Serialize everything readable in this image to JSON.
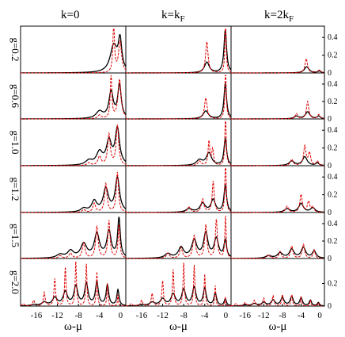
{
  "chart_data": {
    "type": "line",
    "columns": [
      "k=0",
      "k=k_F",
      "k=2k_F"
    ],
    "rows": [
      "g=0.2",
      "g=0.6",
      "g=1.0",
      "g=1.2",
      "g=1.5",
      "g=2.0"
    ],
    "xlabel": "ω-μ",
    "xlim": [
      -19,
      1
    ],
    "xticks": [
      -16,
      -12,
      -8,
      -4,
      0
    ],
    "ylim_upper": [
      0,
      0.5
    ],
    "yticks_upper": [
      0,
      0.2,
      0.4
    ],
    "ylim_bottom": [
      0,
      0.4
    ],
    "yticks_bottom": [
      0,
      0.2
    ],
    "series_styles": [
      {
        "id": "black",
        "color": "#000000",
        "dash": "solid"
      },
      {
        "id": "red",
        "color": "#e00000",
        "dash": "dashed"
      }
    ],
    "panels": [
      {
        "row": 0,
        "col": 0,
        "black": [
          [
            -1.3,
            0.8,
            0.3
          ],
          [
            -0.1,
            0.4,
            0.34
          ]
        ],
        "red": [
          [
            -1.3,
            0.18,
            0.55
          ],
          [
            -0.1,
            0.35,
            0.35
          ]
        ]
      },
      {
        "row": 0,
        "col": 1,
        "black": [
          [
            -3.6,
            0.55,
            0.12
          ],
          [
            -0.1,
            0.3,
            0.48
          ]
        ],
        "red": [
          [
            -3.6,
            0.28,
            0.35
          ],
          [
            -0.05,
            0.14,
            0.62
          ]
        ]
      },
      {
        "row": 0,
        "col": 2,
        "black": [
          [
            -2.8,
            0.6,
            0.07
          ],
          [
            -0.1,
            0.4,
            0.02
          ]
        ],
        "red": [
          [
            -2.9,
            0.32,
            0.16
          ],
          [
            -0.1,
            0.4,
            0.03
          ]
        ]
      },
      {
        "row": 1,
        "col": 0,
        "black": [
          [
            -4.0,
            0.8,
            0.08
          ],
          [
            -1.8,
            0.5,
            0.3
          ],
          [
            -0.2,
            0.4,
            0.38
          ]
        ],
        "red": [
          [
            -4.0,
            0.4,
            0.04
          ],
          [
            -1.8,
            0.18,
            0.5
          ],
          [
            -0.2,
            0.35,
            0.45
          ]
        ]
      },
      {
        "row": 1,
        "col": 1,
        "black": [
          [
            -3.8,
            0.6,
            0.09
          ],
          [
            -0.1,
            0.3,
            0.4
          ]
        ],
        "red": [
          [
            -3.8,
            0.3,
            0.24
          ],
          [
            -0.05,
            0.15,
            0.62
          ]
        ]
      },
      {
        "row": 1,
        "col": 2,
        "black": [
          [
            -5.0,
            0.6,
            0.03
          ],
          [
            -2.6,
            0.6,
            0.08
          ],
          [
            -0.2,
            0.4,
            0.03
          ]
        ],
        "red": [
          [
            -5.0,
            0.3,
            0.06
          ],
          [
            -2.6,
            0.3,
            0.2
          ],
          [
            -0.2,
            0.3,
            0.05
          ]
        ]
      },
      {
        "row": 2,
        "col": 0,
        "black": [
          [
            -6.0,
            0.8,
            0.05
          ],
          [
            -4.0,
            0.7,
            0.14
          ],
          [
            -2.2,
            0.6,
            0.26
          ],
          [
            -0.6,
            0.5,
            0.4
          ]
        ],
        "red": [
          [
            -6.0,
            0.4,
            0.03
          ],
          [
            -4.0,
            0.35,
            0.1
          ],
          [
            -2.2,
            0.3,
            0.35
          ],
          [
            -0.6,
            0.28,
            0.45
          ]
        ]
      },
      {
        "row": 2,
        "col": 1,
        "black": [
          [
            -5.0,
            0.7,
            0.06
          ],
          [
            -3.2,
            0.6,
            0.14
          ],
          [
            -0.1,
            0.3,
            0.3
          ]
        ],
        "red": [
          [
            -5.0,
            0.35,
            0.05
          ],
          [
            -3.2,
            0.2,
            0.27
          ],
          [
            -2.5,
            0.2,
            0.18
          ],
          [
            -0.05,
            0.14,
            0.62
          ]
        ]
      },
      {
        "row": 2,
        "col": 2,
        "black": [
          [
            -6.0,
            0.7,
            0.05
          ],
          [
            -3.2,
            0.6,
            0.1
          ],
          [
            -0.5,
            0.4,
            0.03
          ]
        ],
        "red": [
          [
            -6.0,
            0.35,
            0.07
          ],
          [
            -3.2,
            0.3,
            0.22
          ],
          [
            -2.2,
            0.3,
            0.14
          ],
          [
            -0.5,
            0.3,
            0.05
          ]
        ]
      },
      {
        "row": 3,
        "col": 0,
        "black": [
          [
            -7.0,
            0.7,
            0.04
          ],
          [
            -5.0,
            0.6,
            0.12
          ],
          [
            -2.8,
            0.6,
            0.26
          ],
          [
            -0.6,
            0.5,
            0.38
          ]
        ],
        "red": [
          [
            -7.0,
            0.35,
            0.03
          ],
          [
            -5.0,
            0.3,
            0.1
          ],
          [
            -2.8,
            0.28,
            0.32
          ],
          [
            -0.6,
            0.25,
            0.45
          ]
        ]
      },
      {
        "row": 3,
        "col": 1,
        "black": [
          [
            -7.0,
            0.7,
            0.04
          ],
          [
            -4.4,
            0.6,
            0.1
          ],
          [
            -2.4,
            0.5,
            0.14
          ],
          [
            -0.1,
            0.3,
            0.3
          ]
        ],
        "red": [
          [
            -7.0,
            0.35,
            0.06
          ],
          [
            -4.4,
            0.3,
            0.15
          ],
          [
            -2.4,
            0.22,
            0.35
          ],
          [
            -0.05,
            0.14,
            0.62
          ]
        ]
      },
      {
        "row": 3,
        "col": 2,
        "black": [
          [
            -7.0,
            0.7,
            0.04
          ],
          [
            -4.0,
            0.6,
            0.1
          ],
          [
            -1.5,
            0.6,
            0.05
          ]
        ],
        "red": [
          [
            -7.0,
            0.35,
            0.07
          ],
          [
            -4.0,
            0.3,
            0.2
          ],
          [
            -2.4,
            0.3,
            0.12
          ],
          [
            -1.5,
            0.3,
            0.06
          ]
        ]
      },
      {
        "row": 4,
        "col": 0,
        "black": [
          [
            -11.5,
            0.8,
            0.04
          ],
          [
            -9.5,
            0.7,
            0.08
          ],
          [
            -7.0,
            0.7,
            0.16
          ],
          [
            -4.5,
            0.6,
            0.27
          ],
          [
            -2.2,
            0.5,
            0.3
          ],
          [
            -0.3,
            0.3,
            0.45
          ]
        ],
        "red": [
          [
            -11.5,
            0.4,
            0.03
          ],
          [
            -9.5,
            0.35,
            0.06
          ],
          [
            -7.0,
            0.3,
            0.18
          ],
          [
            -4.5,
            0.28,
            0.36
          ],
          [
            -2.2,
            0.25,
            0.43
          ],
          [
            -0.3,
            0.2,
            0.38
          ]
        ]
      },
      {
        "row": 4,
        "col": 1,
        "black": [
          [
            -11.0,
            0.7,
            0.05
          ],
          [
            -8.5,
            0.6,
            0.12
          ],
          [
            -6.0,
            0.6,
            0.2
          ],
          [
            -3.8,
            0.5,
            0.28
          ],
          [
            -1.8,
            0.5,
            0.22
          ],
          [
            -0.1,
            0.3,
            0.2
          ]
        ],
        "red": [
          [
            -11.0,
            0.35,
            0.06
          ],
          [
            -8.5,
            0.3,
            0.12
          ],
          [
            -6.0,
            0.3,
            0.26
          ],
          [
            -3.8,
            0.25,
            0.38
          ],
          [
            -1.8,
            0.22,
            0.44
          ],
          [
            -0.05,
            0.15,
            0.48
          ]
        ]
      },
      {
        "row": 4,
        "col": 2,
        "black": [
          [
            -11.0,
            0.7,
            0.03
          ],
          [
            -8.5,
            0.7,
            0.06
          ],
          [
            -6.0,
            0.6,
            0.1
          ],
          [
            -3.5,
            0.6,
            0.12
          ],
          [
            -1.2,
            0.5,
            0.08
          ]
        ],
        "red": [
          [
            -11.0,
            0.35,
            0.04
          ],
          [
            -8.5,
            0.3,
            0.08
          ],
          [
            -6.0,
            0.3,
            0.14
          ],
          [
            -3.5,
            0.3,
            0.16
          ],
          [
            -1.2,
            0.25,
            0.1
          ]
        ]
      },
      {
        "row": 5,
        "col": 0,
        "black": [
          [
            -16.5,
            0.6,
            0.01
          ],
          [
            -14.5,
            0.6,
            0.03
          ],
          [
            -12.5,
            0.55,
            0.07
          ],
          [
            -10.5,
            0.5,
            0.12
          ],
          [
            -8.5,
            0.45,
            0.17
          ],
          [
            -6.5,
            0.4,
            0.19
          ],
          [
            -4.5,
            0.35,
            0.2
          ],
          [
            -2.5,
            0.3,
            0.18
          ],
          [
            -0.5,
            0.25,
            0.14
          ]
        ],
        "red": [
          [
            -18.5,
            0.25,
            0.02
          ],
          [
            -16.5,
            0.22,
            0.05
          ],
          [
            -14.5,
            0.2,
            0.12
          ],
          [
            -12.5,
            0.18,
            0.24
          ],
          [
            -10.5,
            0.16,
            0.34
          ],
          [
            -8.5,
            0.15,
            0.39
          ],
          [
            -6.5,
            0.14,
            0.37
          ],
          [
            -4.5,
            0.13,
            0.3
          ],
          [
            -2.5,
            0.12,
            0.2
          ],
          [
            -0.5,
            0.1,
            0.1
          ]
        ]
      },
      {
        "row": 5,
        "col": 1,
        "black": [
          [
            -16.0,
            0.6,
            0.01
          ],
          [
            -14.0,
            0.6,
            0.03
          ],
          [
            -12.0,
            0.55,
            0.06
          ],
          [
            -10.0,
            0.5,
            0.1
          ],
          [
            -8.0,
            0.45,
            0.14
          ],
          [
            -6.0,
            0.4,
            0.16
          ],
          [
            -4.0,
            0.35,
            0.15
          ],
          [
            -2.0,
            0.3,
            0.11
          ],
          [
            -0.1,
            0.25,
            0.06
          ]
        ],
        "red": [
          [
            -18.0,
            0.25,
            0.02
          ],
          [
            -16.0,
            0.22,
            0.05
          ],
          [
            -14.0,
            0.2,
            0.11
          ],
          [
            -12.0,
            0.18,
            0.22
          ],
          [
            -10.0,
            0.16,
            0.32
          ],
          [
            -8.0,
            0.15,
            0.38
          ],
          [
            -6.0,
            0.14,
            0.36
          ],
          [
            -4.0,
            0.13,
            0.28
          ],
          [
            -2.0,
            0.12,
            0.18
          ],
          [
            -0.1,
            0.1,
            0.08
          ]
        ]
      },
      {
        "row": 5,
        "col": 2,
        "black": [
          [
            -16.0,
            0.6,
            0.01
          ],
          [
            -14.0,
            0.6,
            0.02
          ],
          [
            -12.0,
            0.55,
            0.03
          ],
          [
            -10.0,
            0.5,
            0.05
          ],
          [
            -8.0,
            0.45,
            0.07
          ],
          [
            -6.0,
            0.4,
            0.08
          ],
          [
            -4.0,
            0.35,
            0.07
          ],
          [
            -2.0,
            0.3,
            0.05
          ],
          [
            -0.3,
            0.25,
            0.03
          ]
        ],
        "red": [
          [
            -18.0,
            0.3,
            0.02
          ],
          [
            -16.0,
            0.28,
            0.03
          ],
          [
            -14.0,
            0.26,
            0.05
          ],
          [
            -12.0,
            0.24,
            0.07
          ],
          [
            -10.0,
            0.22,
            0.09
          ],
          [
            -8.0,
            0.2,
            0.1
          ],
          [
            -6.0,
            0.18,
            0.1
          ],
          [
            -4.0,
            0.16,
            0.08
          ],
          [
            -2.0,
            0.14,
            0.05
          ],
          [
            -0.3,
            0.12,
            0.03
          ]
        ]
      }
    ]
  }
}
